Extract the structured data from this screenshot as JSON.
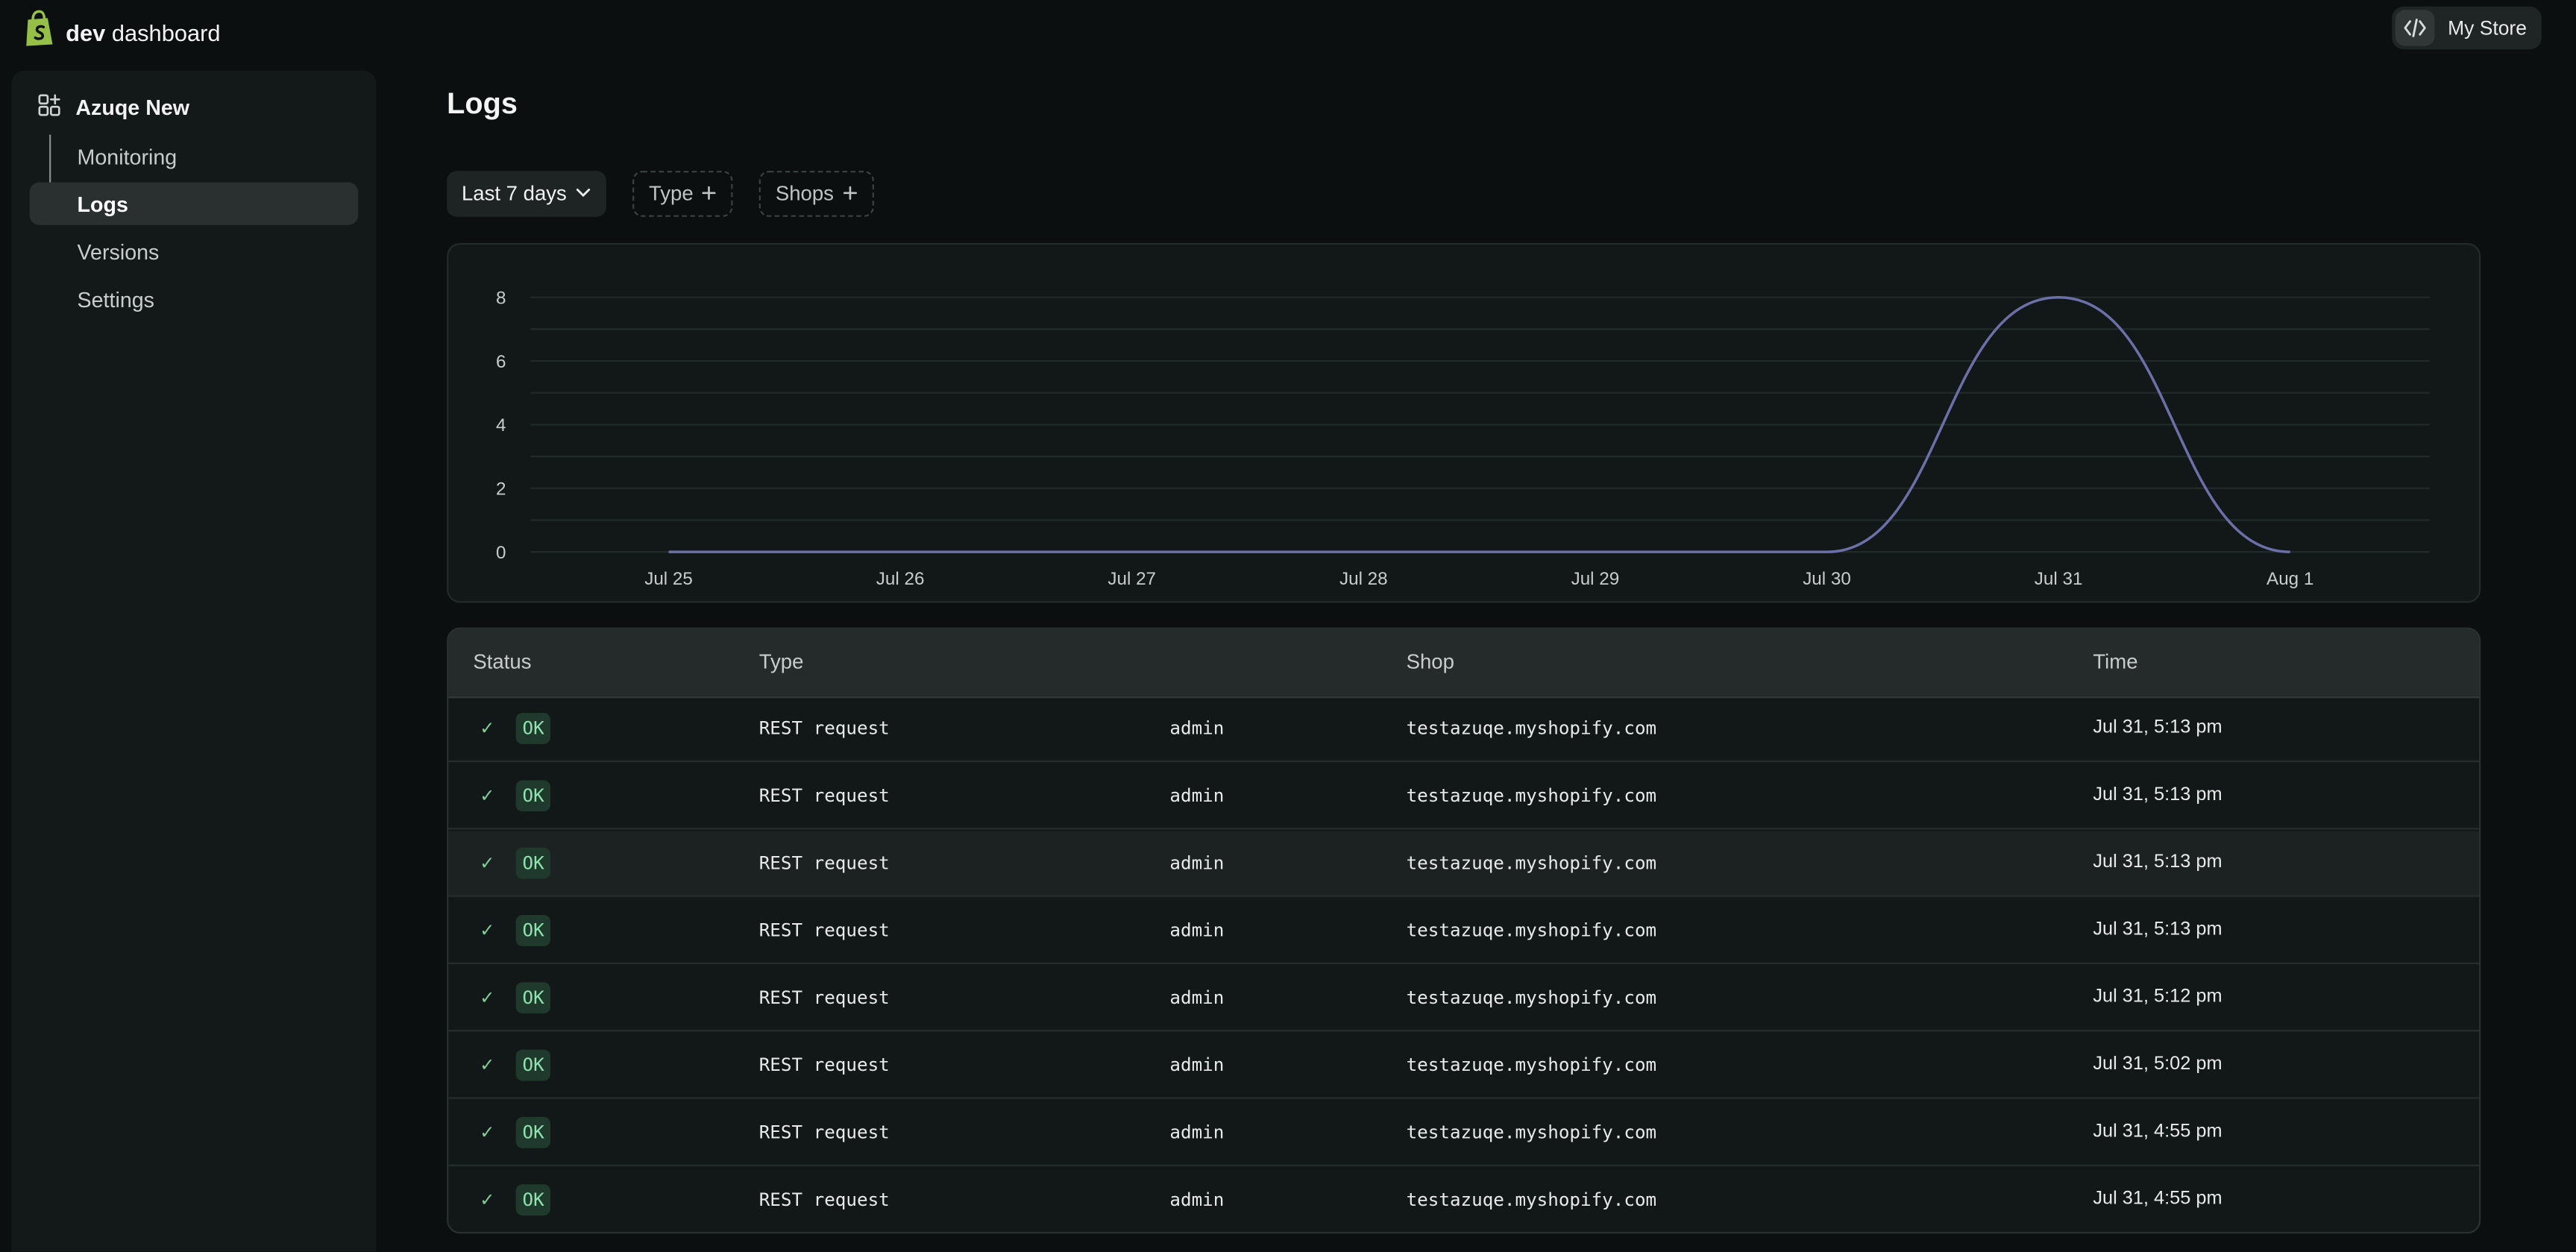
{
  "topbar": {
    "brand_bold": "dev",
    "brand_rest": "dashboard",
    "store_label": "My Store"
  },
  "sidebar": {
    "app_name": "Azuqe New",
    "items": [
      {
        "label": "Monitoring",
        "active": false
      },
      {
        "label": "Logs",
        "active": true
      },
      {
        "label": "Versions",
        "active": false
      },
      {
        "label": "Settings",
        "active": false
      }
    ]
  },
  "page": {
    "title": "Logs"
  },
  "filters": {
    "date_range": "Last 7 days",
    "type": "Type",
    "shops": "Shops"
  },
  "chart_data": {
    "type": "line",
    "x": [
      "Jul 25",
      "Jul 26",
      "Jul 27",
      "Jul 28",
      "Jul 29",
      "Jul 30",
      "Jul 31",
      "Aug 1"
    ],
    "series": [
      {
        "values": [
          0,
          0,
          0,
          0,
          0,
          0,
          8,
          0
        ],
        "color": "#6b70a8"
      }
    ],
    "ylim": [
      0,
      8
    ],
    "yticks": [
      0,
      2,
      4,
      6,
      8
    ],
    "grid": true,
    "title": "",
    "xlabel": "",
    "ylabel": ""
  },
  "table": {
    "columns": [
      "Status",
      "Type",
      "Shop",
      "Time"
    ],
    "rows": [
      {
        "status": "OK",
        "type": "REST request",
        "api": "admin",
        "shop": "testazuqe.myshopify.com",
        "time": "Jul 31, 5:13 pm"
      },
      {
        "status": "OK",
        "type": "REST request",
        "api": "admin",
        "shop": "testazuqe.myshopify.com",
        "time": "Jul 31, 5:13 pm"
      },
      {
        "status": "OK",
        "type": "REST request",
        "api": "admin",
        "shop": "testazuqe.myshopify.com",
        "time": "Jul 31, 5:13 pm"
      },
      {
        "status": "OK",
        "type": "REST request",
        "api": "admin",
        "shop": "testazuqe.myshopify.com",
        "time": "Jul 31, 5:13 pm"
      },
      {
        "status": "OK",
        "type": "REST request",
        "api": "admin",
        "shop": "testazuqe.myshopify.com",
        "time": "Jul 31, 5:12 pm"
      },
      {
        "status": "OK",
        "type": "REST request",
        "api": "admin",
        "shop": "testazuqe.myshopify.com",
        "time": "Jul 31, 5:02 pm"
      },
      {
        "status": "OK",
        "type": "REST request",
        "api": "admin",
        "shop": "testazuqe.myshopify.com",
        "time": "Jul 31, 4:55 pm"
      },
      {
        "status": "OK",
        "type": "REST request",
        "api": "admin",
        "shop": "testazuqe.myshopify.com",
        "time": "Jul 31, 4:55 pm"
      }
    ]
  },
  "colors": {
    "background": "#0b0f0f",
    "panel": "#121818",
    "accent_line": "#6b70a8",
    "ok_badge": "#1f3a2c",
    "ok_text": "#8fe3ae",
    "brand_green": "#95bf47"
  }
}
